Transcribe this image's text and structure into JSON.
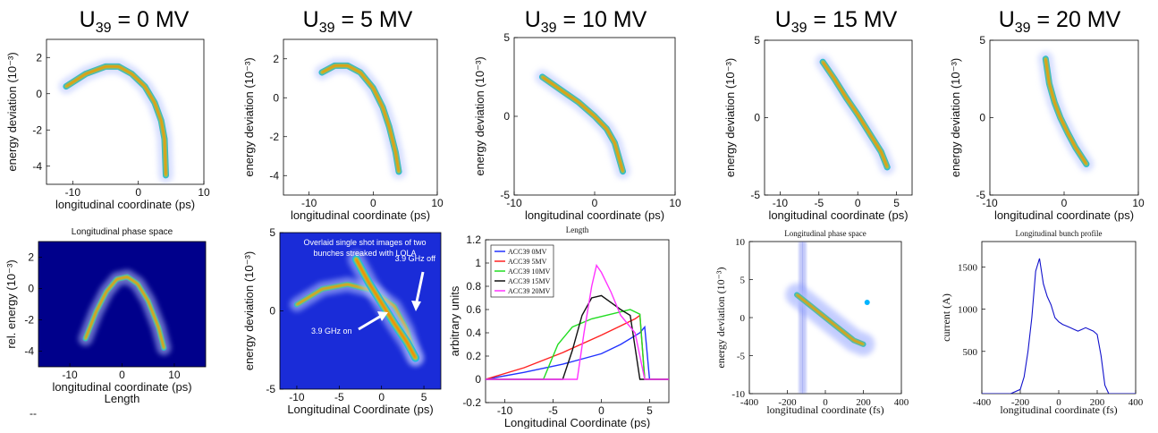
{
  "top_row_titles": [
    "U39 = 0 MV",
    "U39 = 5 MV",
    "U39 = 10 MV",
    "U39 = 15 MV",
    "U39 = 20 MV"
  ],
  "colors": {
    "jet_dark": "#00008b",
    "jet_red": "#d7191c",
    "jet_blue_field": "#1a2cd8",
    "legend_0MV": "#2233ff",
    "legend_5MV": "#ff2222",
    "legend_10MV": "#22dd22",
    "legend_15MV": "#111111",
    "legend_20MV": "#ff33ff",
    "profile_line": "#1111cc"
  },
  "chart_data": [
    {
      "id": "top-0MV",
      "type": "heatmap",
      "title_prefix": "U",
      "title_sub": "39",
      "title_suffix": " = 0 MV",
      "xlabel": "longitudinal coordinate (ps)",
      "ylabel": "energy deviation (10⁻³)",
      "xticks": [
        "-10",
        "0",
        "10"
      ],
      "yticks": [
        "2",
        "0",
        "-2",
        "-4"
      ],
      "xlim": [
        -14,
        10
      ],
      "ylim": [
        -5,
        3
      ],
      "curve": [
        [
          -11,
          0.4
        ],
        [
          -8,
          1.1
        ],
        [
          -5,
          1.5
        ],
        [
          -3,
          1.5
        ],
        [
          -1,
          1.1
        ],
        [
          1,
          0.4
        ],
        [
          2.5,
          -0.5
        ],
        [
          3.5,
          -1.5
        ],
        [
          4,
          -2.5
        ],
        [
          4.2,
          -4.5
        ]
      ]
    },
    {
      "id": "top-5MV",
      "type": "heatmap",
      "title_prefix": "U",
      "title_sub": "39",
      "title_suffix": " = 5 MV",
      "xlabel": "longitudinal coordinate (ps)",
      "ylabel": "energy deviation (10⁻³)",
      "xticks": [
        "-10",
        "0",
        "10"
      ],
      "yticks": [
        "2",
        "0",
        "-2",
        "-4"
      ],
      "xlim": [
        -14,
        10
      ],
      "ylim": [
        -5,
        3
      ],
      "curve": [
        [
          -8,
          1.3
        ],
        [
          -6,
          1.65
        ],
        [
          -4,
          1.65
        ],
        [
          -2,
          1.3
        ],
        [
          0,
          0.5
        ],
        [
          1.5,
          -0.5
        ],
        [
          2.5,
          -1.5
        ],
        [
          3.5,
          -2.8
        ],
        [
          4,
          -3.8
        ]
      ]
    },
    {
      "id": "top-10MV",
      "type": "heatmap",
      "title_prefix": "U",
      "title_sub": "39",
      "title_suffix": " = 10 MV",
      "xlabel": "longitudinal coordinate (ps)",
      "ylabel": "energy deviation (10⁻³)",
      "xticks": [
        "-10",
        "0",
        "10"
      ],
      "yticks": [
        "5",
        "0",
        "-5"
      ],
      "xlim": [
        -10,
        10
      ],
      "ylim": [
        -5,
        5
      ],
      "curve": [
        [
          -6.5,
          2.5
        ],
        [
          -4,
          1.6
        ],
        [
          -2,
          0.9
        ],
        [
          0,
          0.0
        ],
        [
          1.5,
          -0.8
        ],
        [
          2.5,
          -1.7
        ],
        [
          3.5,
          -3.5
        ]
      ]
    },
    {
      "id": "top-15MV",
      "type": "heatmap",
      "title_prefix": "U",
      "title_sub": "39",
      "title_suffix": " = 15 MV",
      "xlabel": "longitudinal coordinate (ps)",
      "ylabel": "energy deviation (10⁻³)",
      "xticks": [
        "-10",
        "-5",
        "0",
        "5"
      ],
      "yticks": [
        "5",
        "0",
        "-5"
      ],
      "xlim": [
        -12,
        7
      ],
      "ylim": [
        -5,
        5
      ],
      "curve": [
        [
          -4.5,
          3.6
        ],
        [
          -3,
          2.5
        ],
        [
          -1.5,
          1.3
        ],
        [
          0,
          0.2
        ],
        [
          1.5,
          -1.0
        ],
        [
          3,
          -2.2
        ],
        [
          3.8,
          -3.2
        ]
      ]
    },
    {
      "id": "top-20MV",
      "type": "heatmap",
      "title_prefix": "U",
      "title_sub": "39",
      "title_suffix": " = 20 MV",
      "xlabel": "longitudinal coordinate (ps)",
      "ylabel": "energy deviation (10⁻³)",
      "xticks": [
        "-10",
        "0",
        "10"
      ],
      "yticks": [
        "5",
        "0",
        "-5"
      ],
      "xlim": [
        -10,
        10
      ],
      "ylim": [
        -5,
        5
      ],
      "curve": [
        [
          -2.5,
          3.8
        ],
        [
          -2,
          2.2
        ],
        [
          -1.3,
          1.0
        ],
        [
          -0.5,
          0.0
        ],
        [
          0.5,
          -1.0
        ],
        [
          1.5,
          -1.9
        ],
        [
          3,
          -3.0
        ]
      ]
    },
    {
      "id": "bot-1",
      "type": "heatmap",
      "title": "Longitudinal phase space",
      "xlabel": "longitudinal coordinate (ps)",
      "ylabel": "rel. energy (10⁻³)",
      "footer": "Length",
      "xticks": [
        "-10",
        "0",
        "10"
      ],
      "yticks": [
        "2",
        "0",
        "-2",
        "-4"
      ],
      "xlim": [
        -16,
        16
      ],
      "ylim": [
        -5,
        3
      ],
      "curve": [
        [
          -7,
          -3.2
        ],
        [
          -5,
          -1.5
        ],
        [
          -3,
          -0.2
        ],
        [
          -1,
          0.6
        ],
        [
          1,
          0.75
        ],
        [
          3,
          0.3
        ],
        [
          5,
          -0.8
        ],
        [
          7,
          -2.5
        ],
        [
          8,
          -3.8
        ]
      ]
    },
    {
      "id": "bot-2",
      "type": "heatmap",
      "annotation": "Overlaid single shot images of two bunches streaked with LOLA",
      "label_off": "3.9 GHz off",
      "label_on": "3.9 GHz on",
      "xlabel": "Longitudinal Coordinate (ps)",
      "ylabel": "energy deviation (10⁻³)",
      "xticks": [
        "-10",
        "-5",
        "0",
        "5"
      ],
      "yticks": [
        "5",
        "0",
        "-5"
      ],
      "xlim": [
        -12,
        7
      ],
      "ylim": [
        -5,
        5
      ],
      "curve_off": [
        [
          -10,
          0.4
        ],
        [
          -7,
          1.4
        ],
        [
          -4,
          1.7
        ],
        [
          -1,
          1.3
        ],
        [
          1.5,
          0.3
        ],
        [
          3,
          -1.2
        ],
        [
          4,
          -3.0
        ]
      ],
      "curve_on": [
        [
          -3,
          3.3
        ],
        [
          -1.5,
          1.8
        ],
        [
          0,
          0.5
        ],
        [
          1.5,
          -0.8
        ],
        [
          3,
          -2.0
        ],
        [
          4,
          -3.0
        ]
      ]
    },
    {
      "id": "bot-3",
      "type": "line",
      "title": "Length",
      "xlabel": "Longitudinal Coordinate (ps)",
      "ylabel": "arbitrary units",
      "xticks": [
        "-10",
        "-5",
        "0",
        "5"
      ],
      "yticks": [
        "1.2",
        "1",
        "0.8",
        "0.6",
        "0.4",
        "0.2",
        "0",
        "-0.2"
      ],
      "xlim": [
        -12,
        7
      ],
      "ylim": [
        -0.2,
        1.2
      ],
      "series": [
        {
          "name": "ACC39 0MV",
          "color_key": "legend_0MV",
          "x": [
            -12,
            -8,
            -4,
            0,
            2,
            4,
            4.5,
            5,
            7
          ],
          "y": [
            0,
            0.06,
            0.13,
            0.22,
            0.3,
            0.4,
            0.45,
            0,
            0
          ]
        },
        {
          "name": "ACC39 5MV",
          "color_key": "legend_5MV",
          "x": [
            -12,
            -8,
            -4,
            0,
            2,
            3.5,
            4,
            4.5,
            7
          ],
          "y": [
            0,
            0.1,
            0.23,
            0.38,
            0.46,
            0.52,
            0.55,
            0,
            0
          ]
        },
        {
          "name": "ACC39 10MV",
          "color_key": "legend_10MV",
          "x": [
            -12,
            -6,
            -4.5,
            -3,
            -1,
            1,
            3,
            4,
            4.5,
            7
          ],
          "y": [
            0,
            0,
            0.3,
            0.45,
            0.52,
            0.56,
            0.6,
            0.56,
            0,
            0
          ]
        },
        {
          "name": "ACC39 15MV",
          "color_key": "legend_15MV",
          "x": [
            -12,
            -4,
            -3,
            -2,
            -1,
            0,
            1,
            2,
            3,
            4,
            7
          ],
          "y": [
            0,
            0,
            0.25,
            0.55,
            0.7,
            0.72,
            0.66,
            0.6,
            0.55,
            0,
            0
          ]
        },
        {
          "name": "ACC39 20MV",
          "color_key": "legend_20MV",
          "x": [
            -12,
            -2.5,
            -1.8,
            -1,
            -0.5,
            0,
            1,
            2,
            3.5,
            4.5,
            7
          ],
          "y": [
            0,
            0,
            0.4,
            0.8,
            0.98,
            0.92,
            0.75,
            0.55,
            0.4,
            0,
            0
          ]
        }
      ]
    },
    {
      "id": "bot-4",
      "type": "scatter",
      "title": "Longitudinal phase space",
      "xlabel": "longitudinal coordinate (fs)",
      "ylabel": "energy deviation (10⁻³)",
      "xticks": [
        "-400",
        "-200",
        "0",
        "200",
        "400"
      ],
      "yticks": [
        "10",
        "5",
        "0",
        "-5",
        "-10"
      ],
      "xlim": [
        -400,
        400
      ],
      "ylim": [
        -10,
        10
      ],
      "curve": [
        [
          -150,
          3
        ],
        [
          -100,
          2
        ],
        [
          -50,
          1
        ],
        [
          0,
          0
        ],
        [
          50,
          -1
        ],
        [
          100,
          -2
        ],
        [
          150,
          -3
        ],
        [
          200,
          -3.5
        ]
      ],
      "column": [
        -140,
        -100
      ]
    },
    {
      "id": "bot-5",
      "type": "line",
      "title": "Longitudinal bunch profile",
      "xlabel": "longitudinal coordinate (fs)",
      "ylabel": "current (A)",
      "xticks": [
        "-400",
        "-200",
        "0",
        "200",
        "400"
      ],
      "yticks": [
        "1500",
        "1000",
        "500"
      ],
      "xlim": [
        -400,
        400
      ],
      "ylim": [
        0,
        1800
      ],
      "series": [
        {
          "name": "",
          "color_key": "profile_line",
          "x": [
            -400,
            -250,
            -200,
            -180,
            -160,
            -140,
            -120,
            -100,
            -80,
            -60,
            -40,
            -20,
            0,
            20,
            40,
            60,
            80,
            100,
            120,
            140,
            160,
            180,
            200,
            220,
            240,
            260,
            300,
            400
          ],
          "y": [
            0,
            0,
            50,
            200,
            500,
            900,
            1450,
            1600,
            1300,
            1150,
            1050,
            900,
            850,
            820,
            800,
            780,
            760,
            740,
            760,
            780,
            760,
            740,
            700,
            450,
            100,
            0,
            0,
            0
          ]
        }
      ]
    }
  ]
}
